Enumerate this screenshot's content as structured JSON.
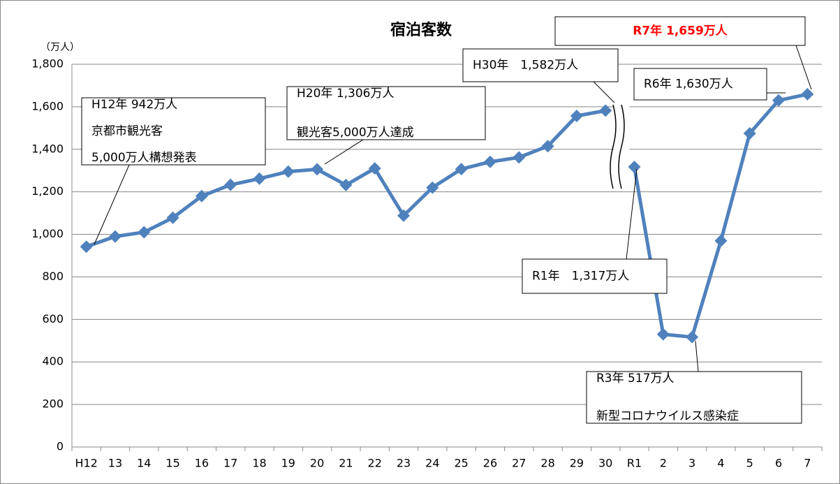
{
  "chart_data": {
    "type": "line",
    "title": "宿泊客数",
    "y_label": "（万人）",
    "categories": [
      "H12",
      "13",
      "14",
      "15",
      "16",
      "17",
      "18",
      "19",
      "20",
      "21",
      "22",
      "23",
      "24",
      "25",
      "26",
      "27",
      "28",
      "29",
      "30",
      "R1",
      "2",
      "3",
      "4",
      "5",
      "6",
      "7"
    ],
    "series": [
      {
        "color": "#4f81bd",
        "values": [
          942,
          990,
          1010,
          1078,
          1180,
          1233,
          1262,
          1295,
          1306,
          1232,
          1310,
          1088,
          1220,
          1307,
          1341,
          1362,
          1415,
          1557,
          1582,
          null,
          null,
          null,
          null,
          null,
          null,
          null
        ]
      },
      {
        "color": "#4f81bd",
        "values": [
          null,
          null,
          null,
          null,
          null,
          null,
          null,
          null,
          null,
          null,
          null,
          null,
          null,
          null,
          null,
          null,
          null,
          null,
          null,
          1317,
          530,
          517,
          970,
          1475,
          1630,
          1659
        ]
      }
    ],
    "ylim": [
      0,
      1800
    ],
    "yticks": [
      0,
      200,
      400,
      600,
      800,
      {
        "value": 1000,
        "label": "1,000"
      },
      {
        "value": 1200,
        "label": "1,200"
      },
      {
        "value": 1400,
        "label": "1,400"
      },
      {
        "value": 1600,
        "label": "1,600"
      },
      {
        "value": 1800,
        "label": "1,800"
      }
    ],
    "grid": true,
    "annotations": [
      {
        "lines": [
          "H12年 942万人",
          "京都市観光客",
          "5,000万人構想発表"
        ]
      },
      {
        "lines": [
          "H20年 1,306万人",
          "観光客5,000万人達成"
        ]
      },
      {
        "lines": [
          "H30年　1,582万人"
        ]
      },
      {
        "lines": [
          "R7年 1,659万人"
        ],
        "color": "#ff0000"
      },
      {
        "lines": [
          "R6年 1,630万人"
        ]
      },
      {
        "lines": [
          "R1年　1,317万人"
        ]
      },
      {
        "lines": [
          "R3年 517万人",
          "新型コロナウイルス感染症"
        ]
      }
    ]
  }
}
